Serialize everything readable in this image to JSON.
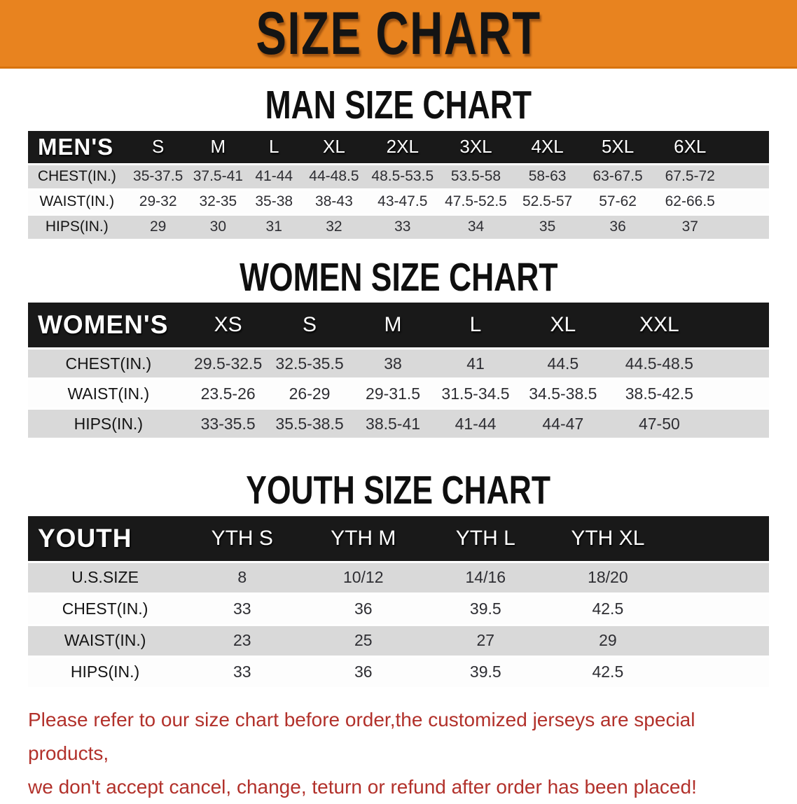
{
  "banner": {
    "title": "SIZE CHART"
  },
  "sections": {
    "men": {
      "title": "MAN SIZE CHART",
      "table": {
        "header_label": "MEN'S",
        "columns": [
          "S",
          "M",
          "L",
          "XL",
          "2XL",
          "3XL",
          "4XL",
          "5XL",
          "6XL"
        ],
        "rows": [
          {
            "label": "CHEST(IN.)",
            "values": [
              "35-37.5",
              "37.5-41",
              "41-44",
              "44-48.5",
              "48.5-53.5",
              "53.5-58",
              "58-63",
              "63-67.5",
              "67.5-72"
            ]
          },
          {
            "label": "WAIST(IN.)",
            "values": [
              "29-32",
              "32-35",
              "35-38",
              "38-43",
              "43-47.5",
              "47.5-52.5",
              "52.5-57",
              "57-62",
              "62-66.5"
            ]
          },
          {
            "label": "HIPS(IN.)",
            "values": [
              "29",
              "30",
              "31",
              "32",
              "33",
              "34",
              "35",
              "36",
              "37"
            ]
          }
        ]
      }
    },
    "women": {
      "title": "WOMEN SIZE CHART",
      "table": {
        "header_label": "WOMEN'S",
        "columns": [
          "XS",
          "S",
          "M",
          "L",
          "XL",
          "XXL"
        ],
        "rows": [
          {
            "label": "CHEST(IN.)",
            "values": [
              "29.5-32.5",
              "32.5-35.5",
              "38",
              "41",
              "44.5",
              "44.5-48.5"
            ]
          },
          {
            "label": "WAIST(IN.)",
            "values": [
              "23.5-26",
              "26-29",
              "29-31.5",
              "31.5-34.5",
              "34.5-38.5",
              "38.5-42.5"
            ]
          },
          {
            "label": "HIPS(IN.)",
            "values": [
              "33-35.5",
              "35.5-38.5",
              "38.5-41",
              "41-44",
              "44-47",
              "47-50"
            ]
          }
        ]
      }
    },
    "youth": {
      "title": "YOUTH SIZE CHART",
      "table": {
        "header_label": "YOUTH",
        "columns": [
          "YTH S",
          "YTH M",
          "YTH L",
          "YTH XL"
        ],
        "rows": [
          {
            "label": "U.S.SIZE",
            "values": [
              "8",
              "10/12",
              "14/16",
              "18/20"
            ]
          },
          {
            "label": "CHEST(IN.)",
            "values": [
              "33",
              "36",
              "39.5",
              "42.5"
            ]
          },
          {
            "label": "WAIST(IN.)",
            "values": [
              "23",
              "25",
              "27",
              "29"
            ]
          },
          {
            "label": "HIPS(IN.)",
            "values": [
              "33",
              "36",
              "39.5",
              "42.5"
            ]
          }
        ]
      }
    }
  },
  "disclaimer": {
    "line1": "Please refer to our size chart before order,the customized jerseys are special products,",
    "line2": "we don't accept cancel, change, teturn or refund after order has been placed!"
  },
  "colors": {
    "banner_bg": "#E8831F",
    "banner_text": "#141414",
    "table_header_bg": "#191919",
    "table_header_text": "#FFFFFF",
    "stripe_gray": "#D9D9D9",
    "stripe_white": "#FDFDFD",
    "disclaimer_red": "#B2312B"
  }
}
